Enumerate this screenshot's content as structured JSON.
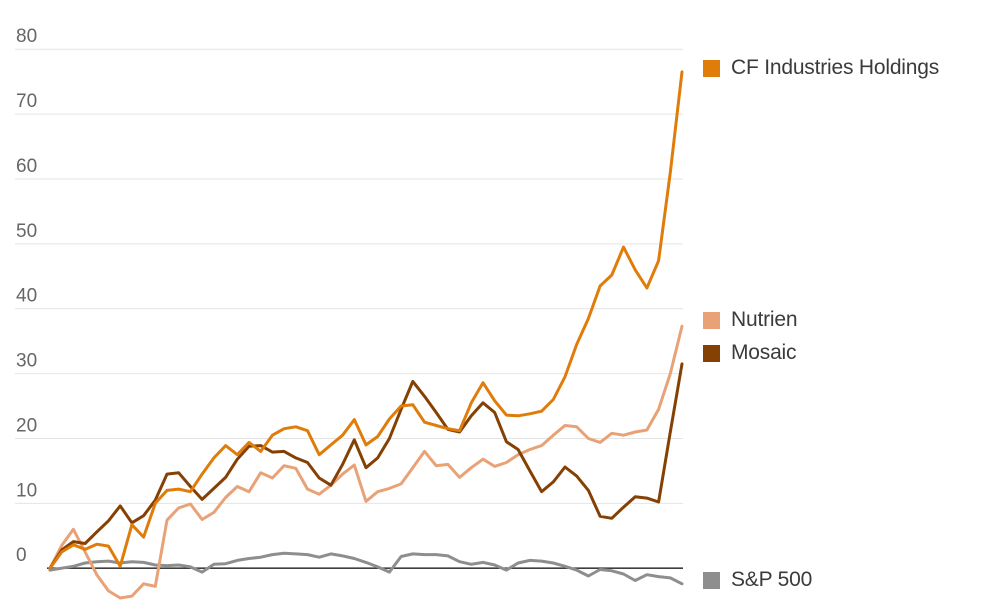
{
  "chart_data": {
    "type": "line",
    "title": "",
    "x_axis": {
      "tick_labels_visible": false,
      "num_points": 55
    },
    "y_axis": {
      "ticks": [
        0,
        10,
        20,
        30,
        40,
        50,
        60,
        70,
        80
      ],
      "range": [
        -6,
        80
      ]
    },
    "grid": "horizontal",
    "legend_position": "right-of-plot, aligned to line endpoints",
    "series": [
      {
        "name": "CF Industries Holdings",
        "color": "#E07C0A",
        "values": [
          0,
          2.5,
          3.6,
          2.9,
          3.7,
          3.4,
          0.3,
          6.7,
          4.8,
          10,
          12,
          12.2,
          11.8,
          14.5,
          17,
          18.9,
          17.5,
          19.4,
          18,
          20.5,
          21.5,
          21.8,
          21.2,
          17.5,
          19,
          20.5,
          22.9,
          19,
          20.3,
          23,
          25,
          25.2,
          22.5,
          22,
          21.5,
          21.2,
          25.5,
          28.6,
          25.8,
          23.6,
          23.5,
          23.8,
          24.2,
          26,
          29.5,
          34.5,
          38.5,
          43.5,
          45.2,
          49.5,
          46,
          43.2,
          47.4,
          61,
          76.5
        ]
      },
      {
        "name": "Nutrien",
        "color": "#E8A276",
        "values": [
          0,
          3.5,
          6,
          2.5,
          -1,
          -3.5,
          -4.6,
          -4.3,
          -2.4,
          -2.8,
          7.4,
          9.3,
          9.9,
          7.5,
          8.6,
          10.9,
          12.6,
          11.8,
          14.7,
          13.9,
          15.8,
          15.4,
          12.2,
          11.4,
          12.8,
          14.5,
          15.9,
          10.3,
          11.8,
          12.3,
          13,
          15.5,
          18,
          15.8,
          16,
          14,
          15.5,
          16.8,
          15.7,
          16.3,
          17.5,
          18.3,
          18.9,
          20.5,
          22,
          21.8,
          20,
          19.4,
          20.8,
          20.5,
          21,
          21.3,
          24.5,
          30,
          37.3
        ]
      },
      {
        "name": "Mosaic",
        "color": "#854004",
        "values": [
          0,
          2.8,
          4.1,
          3.8,
          5.6,
          7.3,
          9.6,
          7,
          8.1,
          10.5,
          14.5,
          14.7,
          12.6,
          10.6,
          12.3,
          14,
          16.8,
          18.8,
          18.9,
          17.9,
          18,
          17,
          16.3,
          13.9,
          12.8,
          16,
          19.8,
          15.5,
          17,
          20,
          24.5,
          28.8,
          26.5,
          24,
          21.4,
          21,
          23.5,
          25.5,
          24,
          19.5,
          18.3,
          15,
          11.8,
          13.3,
          15.6,
          14.2,
          12,
          8,
          7.7,
          9.4,
          11,
          10.8,
          10.2,
          21,
          31.5
        ]
      },
      {
        "name": "S&P 500",
        "color": "#8E8E8E",
        "values": [
          -0.3,
          0,
          0.3,
          0.8,
          1,
          1.1,
          0.8,
          1,
          0.9,
          0.5,
          0.4,
          0.5,
          0.2,
          -0.6,
          0.6,
          0.7,
          1.2,
          1.5,
          1.7,
          2.1,
          2.3,
          2.2,
          2.1,
          1.7,
          2.2,
          1.9,
          1.5,
          0.9,
          0.2,
          -0.6,
          1.8,
          2.2,
          2.1,
          2.1,
          1.9,
          1,
          0.6,
          0.9,
          0.5,
          -0.3,
          0.8,
          1.2,
          1.1,
          0.8,
          0.3,
          -0.3,
          -1.2,
          -0.2,
          -0.4,
          -0.9,
          -1.9,
          -1,
          -1.3,
          -1.5,
          -2.4
        ]
      }
    ],
    "draw_order": [
      3,
      1,
      2,
      0
    ]
  },
  "colors": {
    "background": "#FFFFFF",
    "gridline": "#E4E4E4",
    "zero_line": "#3F3F3F",
    "tick_text": "#666666",
    "legend_text": "#3B3B3B"
  }
}
